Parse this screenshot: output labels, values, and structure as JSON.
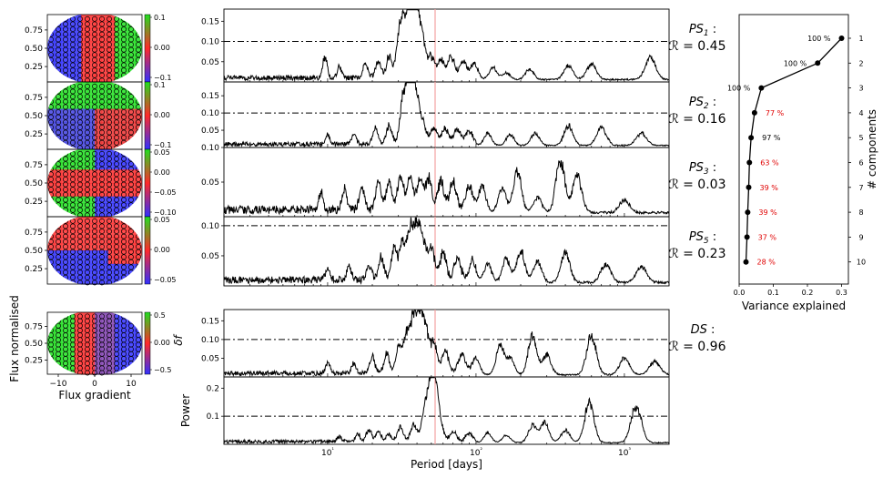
{
  "chart_data": [
    {
      "type": "heatmap",
      "panels": [
        {
          "id": "PS1",
          "cbar_ticks": [
            0.1,
            0.0,
            -0.1
          ]
        },
        {
          "id": "PS2",
          "cbar_ticks": [
            0.1,
            0.0,
            -0.1
          ]
        },
        {
          "id": "PS3",
          "cbar_ticks": [
            0.05,
            0.0,
            -0.05,
            -0.1
          ]
        },
        {
          "id": "PS5",
          "cbar_ticks": [
            0.05,
            0.0,
            -0.05
          ]
        },
        {
          "id": "DS",
          "cbar_ticks": [
            0.5,
            0.0,
            -0.5
          ]
        }
      ],
      "yticks": [
        0.75,
        0.5,
        0.25
      ],
      "xticks": [
        -10,
        0,
        10
      ],
      "ylabel": "Flux normalised",
      "xlabel": "Flux gradient",
      "cbar_label": "δf",
      "colors": [
        "#0000ff",
        "#ff0000",
        "#00ff00"
      ]
    },
    {
      "type": "line",
      "xscale": "log",
      "xlim": [
        2,
        2000
      ],
      "xlabel": "Period [days]",
      "ylabel": "Power",
      "xtick_labels": [
        "10¹",
        "10²",
        "10³"
      ],
      "xtick_values": [
        10,
        100,
        1000
      ],
      "highlight_period": 53,
      "panels": [
        {
          "id": "PS1",
          "name_main": "PS",
          "name_sub": "1",
          "r_label": "ℛ = 0.45",
          "yticks": [
            0.05,
            0.1,
            0.15
          ],
          "ylim": [
            0,
            0.18
          ],
          "threshold": 0.1,
          "peaks": [
            [
              9.6,
              0.06
            ],
            [
              12,
              0.03
            ],
            [
              18,
              0.04
            ],
            [
              22,
              0.05
            ],
            [
              26,
              0.06
            ],
            [
              30,
              0.08
            ],
            [
              32,
              0.12
            ],
            [
              35,
              0.16
            ],
            [
              38,
              0.17
            ],
            [
              41,
              0.11
            ],
            [
              44,
              0.08
            ],
            [
              50,
              0.06
            ],
            [
              58,
              0.05
            ],
            [
              68,
              0.06
            ],
            [
              82,
              0.05
            ],
            [
              98,
              0.04
            ],
            [
              130,
              0.035
            ],
            [
              160,
              0.02
            ],
            [
              230,
              0.03
            ],
            [
              420,
              0.04
            ],
            [
              600,
              0.045
            ],
            [
              1500,
              0.06
            ]
          ]
        },
        {
          "id": "PS2",
          "name_main": "PS",
          "name_sub": "2",
          "r_label": "ℛ = 0.16",
          "yticks": [
            0.05,
            0.1,
            0.15
          ],
          "ylim": [
            0,
            0.19
          ],
          "threshold": 0.1,
          "peaks": [
            [
              10,
              0.03
            ],
            [
              15,
              0.03
            ],
            [
              21,
              0.05
            ],
            [
              26,
              0.06
            ],
            [
              32,
              0.13
            ],
            [
              35,
              0.16
            ],
            [
              37,
              0.17
            ],
            [
              40,
              0.12
            ],
            [
              44,
              0.06
            ],
            [
              52,
              0.05
            ],
            [
              62,
              0.05
            ],
            [
              75,
              0.05
            ],
            [
              90,
              0.04
            ],
            [
              120,
              0.04
            ],
            [
              170,
              0.035
            ],
            [
              250,
              0.04
            ],
            [
              420,
              0.065
            ],
            [
              700,
              0.06
            ],
            [
              1300,
              0.04
            ]
          ]
        },
        {
          "id": "PS3",
          "name_main": "PS",
          "name_sub": "3",
          "r_label": "ℛ = 0.03",
          "yticks": [
            0.05,
            0.1
          ],
          "ylim": [
            0,
            0.1
          ],
          "threshold": 0.1,
          "peaks": [
            [
              9,
              0.03
            ],
            [
              13,
              0.035
            ],
            [
              17,
              0.04
            ],
            [
              22,
              0.045
            ],
            [
              26,
              0.05
            ],
            [
              31,
              0.055
            ],
            [
              36,
              0.055
            ],
            [
              42,
              0.05
            ],
            [
              48,
              0.05
            ],
            [
              58,
              0.045
            ],
            [
              70,
              0.045
            ],
            [
              90,
              0.04
            ],
            [
              110,
              0.045
            ],
            [
              150,
              0.04
            ],
            [
              190,
              0.07
            ],
            [
              260,
              0.025
            ],
            [
              370,
              0.085
            ],
            [
              480,
              0.06
            ],
            [
              1000,
              0.02
            ]
          ]
        },
        {
          "id": "PS5",
          "name_main": "PS",
          "name_sub": "5",
          "r_label": "ℛ = 0.23",
          "yticks": [
            0.05,
            0.1
          ],
          "ylim": [
            0,
            0.115
          ],
          "threshold": 0.1,
          "peaks": [
            [
              10,
              0.02
            ],
            [
              14,
              0.025
            ],
            [
              19,
              0.03
            ],
            [
              23,
              0.045
            ],
            [
              28,
              0.06
            ],
            [
              32,
              0.07
            ],
            [
              36,
              0.09
            ],
            [
              40,
              0.095
            ],
            [
              44,
              0.07
            ],
            [
              50,
              0.06
            ],
            [
              60,
              0.05
            ],
            [
              75,
              0.04
            ],
            [
              95,
              0.035
            ],
            [
              120,
              0.035
            ],
            [
              160,
              0.045
            ],
            [
              200,
              0.06
            ],
            [
              260,
              0.04
            ],
            [
              400,
              0.055
            ],
            [
              750,
              0.035
            ],
            [
              1300,
              0.03
            ]
          ]
        },
        {
          "id": "DS",
          "name_main": "DS",
          "name_sub": "",
          "r_label": "ℛ = 0.96",
          "yticks": [
            0.05,
            0.1,
            0.15
          ],
          "ylim": [
            0,
            0.18
          ],
          "threshold": 0.1,
          "peaks": [
            [
              10,
              0.03
            ],
            [
              15,
              0.03
            ],
            [
              20,
              0.05
            ],
            [
              25,
              0.06
            ],
            [
              30,
              0.08
            ],
            [
              34,
              0.12
            ],
            [
              38,
              0.17
            ],
            [
              42,
              0.15
            ],
            [
              46,
              0.12
            ],
            [
              52,
              0.09
            ],
            [
              62,
              0.07
            ],
            [
              80,
              0.06
            ],
            [
              100,
              0.05
            ],
            [
              145,
              0.09
            ],
            [
              170,
              0.05
            ],
            [
              240,
              0.12
            ],
            [
              300,
              0.06
            ],
            [
              600,
              0.12
            ],
            [
              1000,
              0.05
            ],
            [
              1600,
              0.04
            ]
          ]
        },
        {
          "id": "P6",
          "name_main": "",
          "name_sub": "",
          "r_label": "",
          "yticks": [
            0.1,
            0.2
          ],
          "ylim": [
            0,
            0.24
          ],
          "threshold": 0.1,
          "peaks": [
            [
              12,
              0.02
            ],
            [
              16,
              0.03
            ],
            [
              19,
              0.05
            ],
            [
              22,
              0.04
            ],
            [
              26,
              0.03
            ],
            [
              31,
              0.06
            ],
            [
              38,
              0.07
            ],
            [
              45,
              0.11
            ],
            [
              49,
              0.17
            ],
            [
              53,
              0.23
            ],
            [
              58,
              0.05
            ],
            [
              70,
              0.04
            ],
            [
              90,
              0.035
            ],
            [
              120,
              0.04
            ],
            [
              160,
              0.03
            ],
            [
              240,
              0.07
            ],
            [
              290,
              0.08
            ],
            [
              400,
              0.05
            ],
            [
              580,
              0.16
            ],
            [
              1200,
              0.15
            ]
          ]
        }
      ]
    },
    {
      "type": "line",
      "xlabel": "Variance explained",
      "ylabel": "# components",
      "xlim": [
        0,
        0.32
      ],
      "xticks": [
        0.0,
        0.1,
        0.2,
        0.3
      ],
      "xtick_labels": [
        "0.0",
        "0.1",
        "0.2",
        "0.3"
      ],
      "components": [
        1,
        2,
        3,
        4,
        5,
        6,
        7,
        8,
        9,
        10
      ],
      "variance": [
        0.3,
        0.23,
        0.065,
        0.045,
        0.035,
        0.03,
        0.028,
        0.025,
        0.023,
        0.02
      ],
      "annotations": [
        "100 %",
        "100 %",
        "100 %",
        "77 %",
        "97 %",
        "63 %",
        "39 %",
        "39 %",
        "37 %",
        "28 %"
      ],
      "annotation_colors": [
        "#000000",
        "#000000",
        "#000000",
        "#e00000",
        "#000000",
        "#e00000",
        "#e00000",
        "#e00000",
        "#e00000",
        "#e00000"
      ]
    }
  ]
}
